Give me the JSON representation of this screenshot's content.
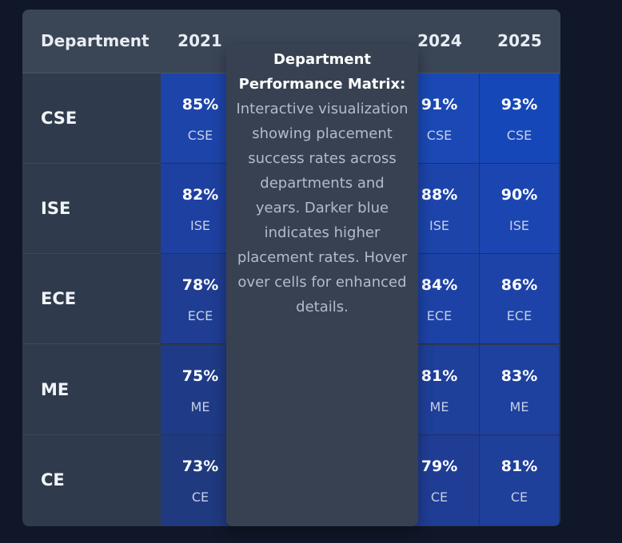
{
  "header": {
    "department_label": "Department",
    "years": [
      "2021",
      "2024",
      "2025"
    ]
  },
  "rows": [
    {
      "dept": "CSE",
      "cells": [
        {
          "pct": "85%",
          "color": "#1d44a8"
        },
        {
          "pct": "91%",
          "color": "#1a49b5"
        },
        {
          "pct": "93%",
          "color": "#1647b8"
        }
      ]
    },
    {
      "dept": "ISE",
      "cells": [
        {
          "pct": "82%",
          "color": "#1e40a0"
        },
        {
          "pct": "88%",
          "color": "#1c44ab"
        },
        {
          "pct": "90%",
          "color": "#1b46b1"
        }
      ]
    },
    {
      "dept": "ECE",
      "cells": [
        {
          "pct": "78%",
          "color": "#1f3d92"
        },
        {
          "pct": "84%",
          "color": "#1d42a6"
        },
        {
          "pct": "86%",
          "color": "#1d43a8"
        }
      ]
    },
    {
      "dept": "ME",
      "cells": [
        {
          "pct": "75%",
          "color": "#1f3b87"
        },
        {
          "pct": "81%",
          "color": "#1e3f9a"
        },
        {
          "pct": "83%",
          "color": "#1e409f"
        }
      ]
    },
    {
      "dept": "CE",
      "cells": [
        {
          "pct": "73%",
          "color": "#203a80"
        },
        {
          "pct": "79%",
          "color": "#1f3d95"
        },
        {
          "pct": "81%",
          "color": "#1e3f9a"
        }
      ]
    }
  ],
  "tooltip": {
    "title": "Department Performance Matrix:",
    "body": "Interactive visualization showing placement success rates across departments and years. Darker blue indicates higher placement rates. Hover over cells for enhanced details."
  }
}
